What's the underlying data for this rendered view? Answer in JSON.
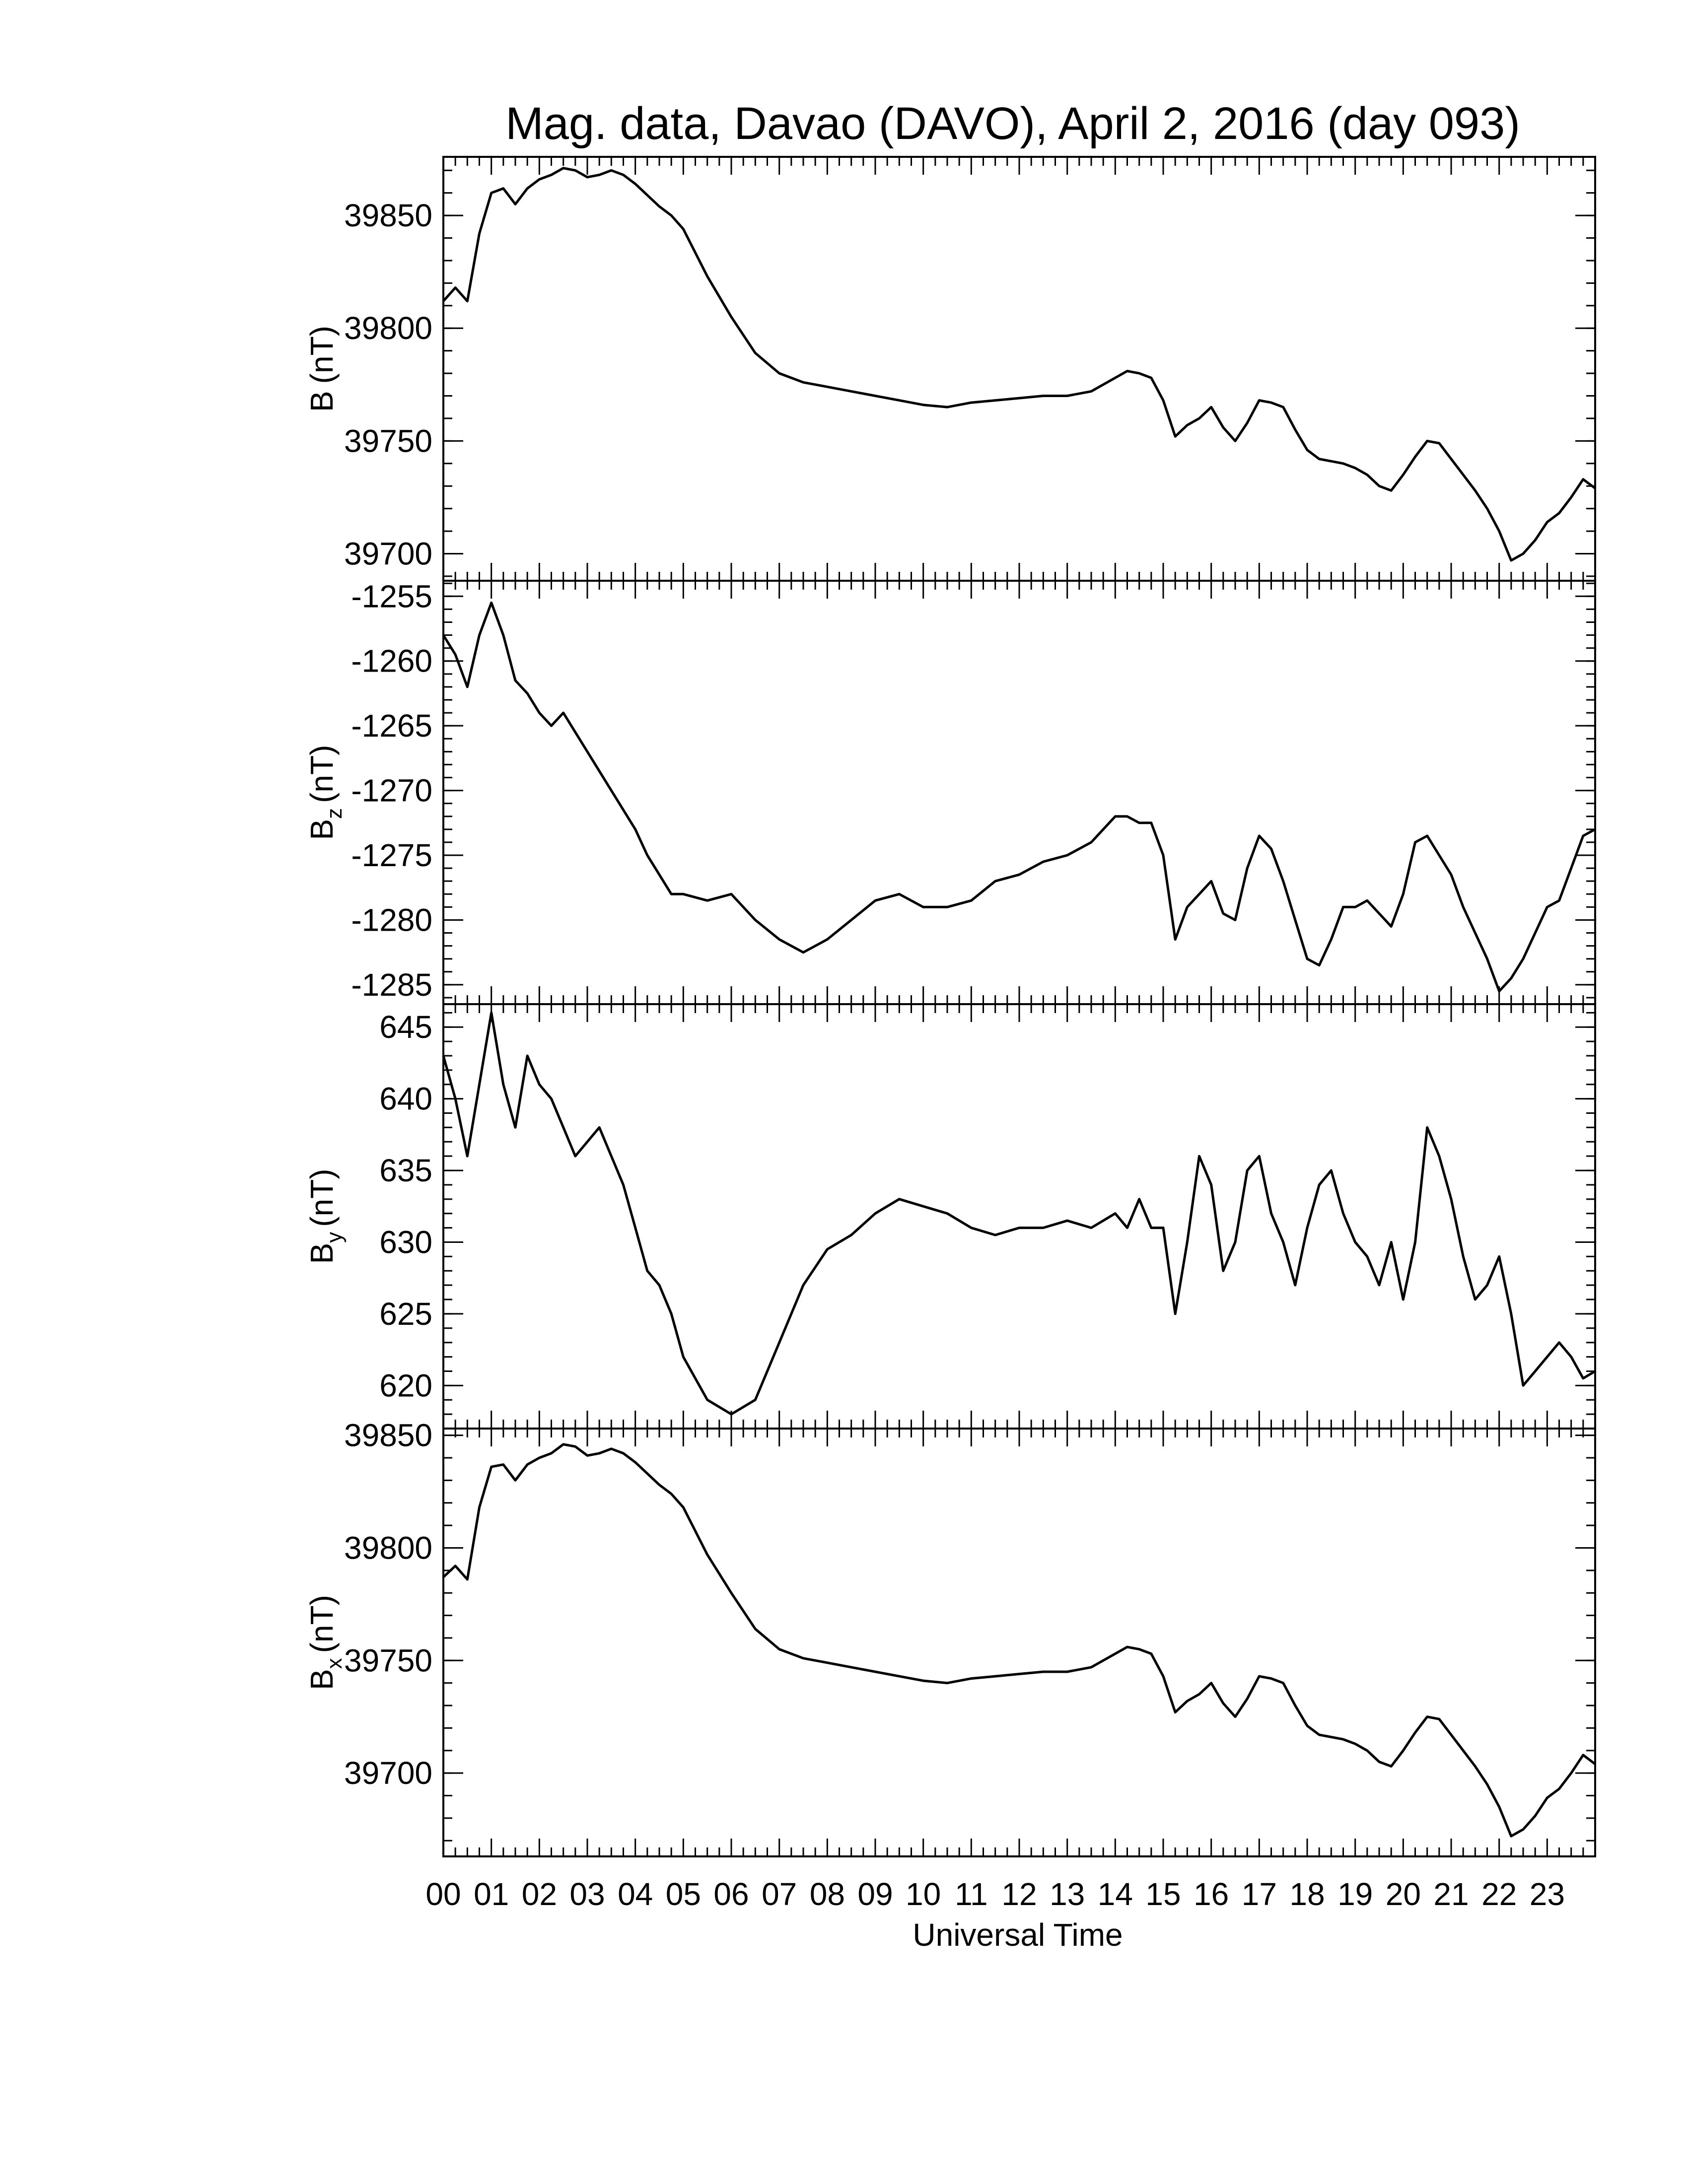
{
  "chart_data": {
    "type": "line",
    "title": "Mag. data, Davao (DAVO), April 2, 2016 (day 093)",
    "xlabel": "Universal Time",
    "xlim": [
      0,
      24
    ],
    "x_tick_labels": [
      "00",
      "01",
      "02",
      "03",
      "04",
      "05",
      "06",
      "07",
      "08",
      "09",
      "10",
      "11",
      "12",
      "13",
      "14",
      "15",
      "16",
      "17",
      "18",
      "19",
      "20",
      "21",
      "22",
      "23"
    ],
    "grid": false,
    "panels": [
      {
        "ylabel_main": "B",
        "ylabel_sub": "",
        "ylabel_unit": "(nT)",
        "ylim": [
          39688,
          39876
        ],
        "yticks": [
          39700,
          39750,
          39800,
          39850
        ],
        "y_tick_labels": [
          "39700",
          "39750",
          "39800",
          "39850"
        ],
        "series": [
          {
            "x": [
              0,
              0.25,
              0.5,
              0.75,
              1,
              1.25,
              1.5,
              1.75,
              2,
              2.25,
              2.5,
              2.75,
              3,
              3.25,
              3.5,
              3.75,
              4,
              4.25,
              4.5,
              4.75,
              5,
              5.5,
              6,
              6.5,
              7,
              7.5,
              8,
              8.5,
              9,
              9.5,
              10,
              10.5,
              11,
              11.5,
              12,
              12.5,
              13,
              13.5,
              14,
              14.25,
              14.5,
              14.75,
              15,
              15.25,
              15.5,
              15.75,
              16,
              16.25,
              16.5,
              16.75,
              17,
              17.25,
              17.5,
              17.75,
              18,
              18.25,
              18.5,
              18.75,
              19,
              19.25,
              19.5,
              19.75,
              20,
              20.25,
              20.5,
              20.75,
              21,
              21.25,
              21.5,
              21.75,
              22,
              22.25,
              22.5,
              22.75,
              23,
              23.25,
              23.5,
              23.75,
              24
            ],
            "y": [
              39812,
              39818,
              39812,
              39842,
              39860,
              39862,
              39855,
              39862,
              39866,
              39868,
              39871,
              39870,
              39867,
              39868,
              39870,
              39868,
              39864,
              39859,
              39854,
              39850,
              39844,
              39823,
              39805,
              39789,
              39780,
              39776,
              39774,
              39772,
              39770,
              39768,
              39766,
              39765,
              39767,
              39768,
              39769,
              39770,
              39770,
              39772,
              39778,
              39781,
              39780,
              39778,
              39768,
              39752,
              39757,
              39760,
              39765,
              39756,
              39750,
              39758,
              39768,
              39767,
              39765,
              39755,
              39746,
              39742,
              39741,
              39740,
              39738,
              39735,
              39730,
              39728,
              39735,
              39743,
              39750,
              39749,
              39742,
              39735,
              39728,
              39720,
              39710,
              39697,
              39700,
              39706,
              39714,
              39718,
              39725,
              39733,
              39729
            ]
          }
        ]
      },
      {
        "ylabel_main": "B",
        "ylabel_sub": "z",
        "ylabel_unit": "(nT)",
        "ylim": [
          -1286.5,
          -1253.8
        ],
        "yticks": [
          -1285,
          -1280,
          -1275,
          -1270,
          -1265,
          -1260,
          -1255
        ],
        "y_tick_labels": [
          "-1285",
          "-1280",
          "-1275",
          "-1270",
          "-1265",
          "-1260",
          "-1255"
        ],
        "series": [
          {
            "x": [
              0,
              0.25,
              0.5,
              0.75,
              1,
              1.25,
              1.5,
              1.75,
              2,
              2.25,
              2.5,
              2.75,
              3,
              3.25,
              3.5,
              3.75,
              4,
              4.25,
              4.5,
              4.75,
              5,
              5.5,
              6,
              6.5,
              7,
              7.5,
              8,
              8.5,
              9,
              9.5,
              10,
              10.5,
              11,
              11.5,
              12,
              12.5,
              13,
              13.5,
              14,
              14.25,
              14.5,
              14.75,
              15,
              15.25,
              15.5,
              15.75,
              16,
              16.25,
              16.5,
              16.75,
              17,
              17.25,
              17.5,
              17.75,
              18,
              18.25,
              18.5,
              18.75,
              19,
              19.25,
              19.5,
              19.75,
              20,
              20.25,
              20.5,
              20.75,
              21,
              21.25,
              21.5,
              21.75,
              22,
              22.25,
              22.5,
              22.75,
              23,
              23.25,
              23.5,
              23.75,
              24
            ],
            "y": [
              -1258,
              -1259.5,
              -1262,
              -1258,
              -1255.5,
              -1258,
              -1261.5,
              -1262.5,
              -1264,
              -1265,
              -1264,
              -1265.5,
              -1267,
              -1268.5,
              -1270,
              -1271.5,
              -1273,
              -1275,
              -1276.5,
              -1278,
              -1278,
              -1278.5,
              -1278,
              -1280,
              -1281.5,
              -1282.5,
              -1281.5,
              -1280,
              -1278.5,
              -1278,
              -1279,
              -1279,
              -1278.5,
              -1277,
              -1276.5,
              -1275.5,
              -1275,
              -1274,
              -1272,
              -1272,
              -1272.5,
              -1272.5,
              -1275,
              -1281.5,
              -1279,
              -1278,
              -1277,
              -1279.5,
              -1280,
              -1276,
              -1273.5,
              -1274.5,
              -1277,
              -1280,
              -1283,
              -1283.5,
              -1281.5,
              -1279,
              -1279,
              -1278.5,
              -1279.5,
              -1280.5,
              -1278,
              -1274,
              -1273.5,
              -1275,
              -1276.5,
              -1279,
              -1281,
              -1283,
              -1285.5,
              -1284.5,
              -1283,
              -1281,
              -1279,
              -1278.5,
              -1276,
              -1273.5,
              -1273
            ]
          }
        ]
      },
      {
        "ylabel_main": "B",
        "ylabel_sub": "y",
        "ylabel_unit": "(nT)",
        "ylim": [
          617,
          646.6
        ],
        "yticks": [
          620,
          625,
          630,
          635,
          640,
          645
        ],
        "y_tick_labels": [
          "620",
          "625",
          "630",
          "635",
          "640",
          "645"
        ],
        "series": [
          {
            "x": [
              0,
              0.25,
              0.5,
              0.75,
              1,
              1.25,
              1.5,
              1.75,
              2,
              2.25,
              2.5,
              2.75,
              3,
              3.25,
              3.5,
              3.75,
              4,
              4.25,
              4.5,
              4.75,
              5,
              5.5,
              6,
              6.5,
              7,
              7.5,
              8,
              8.5,
              9,
              9.5,
              10,
              10.5,
              11,
              11.5,
              12,
              12.5,
              13,
              13.5,
              14,
              14.25,
              14.5,
              14.75,
              15,
              15.25,
              15.5,
              15.75,
              16,
              16.25,
              16.5,
              16.75,
              17,
              17.25,
              17.5,
              17.75,
              18,
              18.25,
              18.5,
              18.75,
              19,
              19.25,
              19.5,
              19.75,
              20,
              20.25,
              20.5,
              20.75,
              21,
              21.25,
              21.5,
              21.75,
              22,
              22.25,
              22.5,
              22.75,
              23,
              23.25,
              23.5,
              23.75,
              24
            ],
            "y": [
              643,
              640,
              636,
              641,
              646,
              641,
              638,
              643,
              641,
              640,
              638,
              636,
              637,
              638,
              636,
              634,
              631,
              628,
              627,
              625,
              622,
              619,
              618,
              619,
              623,
              627,
              629.5,
              630.5,
              632,
              633,
              632.5,
              632,
              631,
              630.5,
              631,
              631,
              631.5,
              631,
              632,
              631,
              633,
              631,
              631,
              625,
              630,
              636,
              634,
              628,
              630,
              635,
              636,
              632,
              630,
              627,
              631,
              634,
              635,
              632,
              630,
              629,
              627,
              630,
              626,
              630,
              638,
              636,
              633,
              629,
              626,
              627,
              629,
              625,
              620,
              621,
              622,
              623,
              622,
              620.5,
              621
            ]
          }
        ]
      },
      {
        "ylabel_main": "B",
        "ylabel_sub": "x",
        "ylabel_unit": "(nT)",
        "ylim": [
          39663,
          39853
        ],
        "yticks": [
          39700,
          39750,
          39800,
          39850
        ],
        "y_tick_labels": [
          "39700",
          "39750",
          "39800",
          "39850"
        ],
        "series": [
          {
            "x": [
              0,
              0.25,
              0.5,
              0.75,
              1,
              1.25,
              1.5,
              1.75,
              2,
              2.25,
              2.5,
              2.75,
              3,
              3.25,
              3.5,
              3.75,
              4,
              4.25,
              4.5,
              4.75,
              5,
              5.5,
              6,
              6.5,
              7,
              7.5,
              8,
              8.5,
              9,
              9.5,
              10,
              10.5,
              11,
              11.5,
              12,
              12.5,
              13,
              13.5,
              14,
              14.25,
              14.5,
              14.75,
              15,
              15.25,
              15.5,
              15.75,
              16,
              16.25,
              16.5,
              16.75,
              17,
              17.25,
              17.5,
              17.75,
              18,
              18.25,
              18.5,
              18.75,
              19,
              19.25,
              19.5,
              19.75,
              20,
              20.25,
              20.5,
              20.75,
              21,
              21.25,
              21.5,
              21.75,
              22,
              22.25,
              22.5,
              22.75,
              23,
              23.25,
              23.5,
              23.75,
              24
            ],
            "y": [
              39787,
              39792,
              39786,
              39818,
              39836,
              39837,
              39830,
              39837,
              39840,
              39842,
              39846,
              39845,
              39841,
              39842,
              39844,
              39842,
              39838,
              39833,
              39828,
              39824,
              39818,
              39797,
              39780,
              39764,
              39755,
              39751,
              39749,
              39747,
              39745,
              39743,
              39741,
              39740,
              39742,
              39743,
              39744,
              39745,
              39745,
              39747,
              39753,
              39756,
              39755,
              39753,
              39743,
              39727,
              39732,
              39735,
              39740,
              39731,
              39725,
              39733,
              39743,
              39742,
              39740,
              39730,
              39721,
              39717,
              39716,
              39715,
              39713,
              39710,
              39705,
              39703,
              39710,
              39718,
              39725,
              39724,
              39717,
              39710,
              39703,
              39695,
              39685,
              39672,
              39675,
              39681,
              39689,
              39693,
              39700,
              39708,
              39704
            ]
          }
        ]
      }
    ]
  }
}
